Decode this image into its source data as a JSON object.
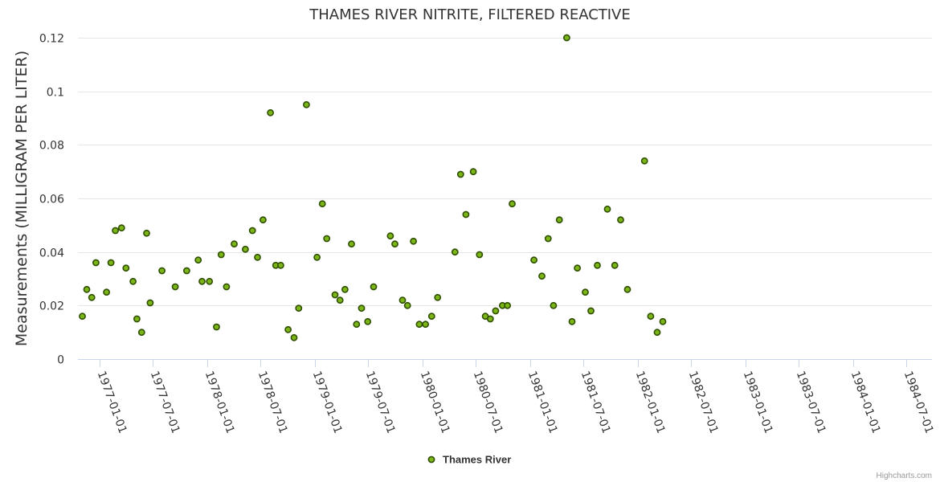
{
  "chart_data": {
    "type": "scatter",
    "title": "THAMES RIVER NITRITE, FILTERED REACTIVE",
    "xlabel": "",
    "ylabel": "Measurements (MILLIGRAM PER LITER)",
    "ylim": [
      0,
      0.12
    ],
    "y_ticks": [
      "0",
      "0.02",
      "0.04",
      "0.06",
      "0.08",
      "0.1",
      "0.12"
    ],
    "xlim": [
      "1976-10-20",
      "1984-09-25"
    ],
    "x_ticks": [
      "1977-01-01",
      "1977-07-01",
      "1978-01-01",
      "1978-07-01",
      "1979-01-01",
      "1979-07-01",
      "1980-01-01",
      "1980-07-01",
      "1981-01-01",
      "1981-07-01",
      "1982-01-01",
      "1982-07-01",
      "1983-01-01",
      "1983-07-01",
      "1984-01-01",
      "1984-07-01"
    ],
    "grid": true,
    "legend": "bottom-center",
    "series": [
      {
        "name": "Thames River",
        "color": "#7cb518",
        "points": [
          {
            "x": "1976-11-04",
            "y": 0.016
          },
          {
            "x": "1976-11-19",
            "y": 0.026
          },
          {
            "x": "1976-12-06",
            "y": 0.023
          },
          {
            "x": "1976-12-20",
            "y": 0.036
          },
          {
            "x": "1977-01-25",
            "y": 0.025
          },
          {
            "x": "1977-02-09",
            "y": 0.036
          },
          {
            "x": "1977-02-24",
            "y": 0.048
          },
          {
            "x": "1977-03-17",
            "y": 0.049
          },
          {
            "x": "1977-04-01",
            "y": 0.034
          },
          {
            "x": "1977-04-25",
            "y": 0.029
          },
          {
            "x": "1977-05-08",
            "y": 0.015
          },
          {
            "x": "1977-05-24",
            "y": 0.01
          },
          {
            "x": "1977-06-10",
            "y": 0.047
          },
          {
            "x": "1977-06-22",
            "y": 0.021
          },
          {
            "x": "1977-08-01",
            "y": 0.033
          },
          {
            "x": "1977-09-15",
            "y": 0.027
          },
          {
            "x": "1977-10-24",
            "y": 0.033
          },
          {
            "x": "1977-12-02",
            "y": 0.037
          },
          {
            "x": "1977-12-15",
            "y": 0.029
          },
          {
            "x": "1978-01-09",
            "y": 0.029
          },
          {
            "x": "1978-02-02",
            "y": 0.012
          },
          {
            "x": "1978-02-18",
            "y": 0.039
          },
          {
            "x": "1978-03-08",
            "y": 0.027
          },
          {
            "x": "1978-04-03",
            "y": 0.043
          },
          {
            "x": "1978-05-11",
            "y": 0.041
          },
          {
            "x": "1978-06-04",
            "y": 0.048
          },
          {
            "x": "1978-06-21",
            "y": 0.038
          },
          {
            "x": "1978-07-10",
            "y": 0.052
          },
          {
            "x": "1978-08-04",
            "y": 0.092
          },
          {
            "x": "1978-08-22",
            "y": 0.035
          },
          {
            "x": "1978-09-08",
            "y": 0.035
          },
          {
            "x": "1978-10-03",
            "y": 0.011
          },
          {
            "x": "1978-10-23",
            "y": 0.008
          },
          {
            "x": "1978-11-08",
            "y": 0.019
          },
          {
            "x": "1978-12-04",
            "y": 0.095
          },
          {
            "x": "1979-01-09",
            "y": 0.038
          },
          {
            "x": "1979-01-27",
            "y": 0.058
          },
          {
            "x": "1979-02-11",
            "y": 0.045
          },
          {
            "x": "1979-03-11",
            "y": 0.024
          },
          {
            "x": "1979-03-28",
            "y": 0.022
          },
          {
            "x": "1979-04-14",
            "y": 0.026
          },
          {
            "x": "1979-05-06",
            "y": 0.043
          },
          {
            "x": "1979-05-23",
            "y": 0.013
          },
          {
            "x": "1979-06-09",
            "y": 0.019
          },
          {
            "x": "1979-06-30",
            "y": 0.014
          },
          {
            "x": "1979-07-20",
            "y": 0.027
          },
          {
            "x": "1979-09-15",
            "y": 0.046
          },
          {
            "x": "1979-09-30",
            "y": 0.043
          },
          {
            "x": "1979-10-26",
            "y": 0.022
          },
          {
            "x": "1979-11-12",
            "y": 0.02
          },
          {
            "x": "1979-12-02",
            "y": 0.044
          },
          {
            "x": "1979-12-22",
            "y": 0.013
          },
          {
            "x": "1980-01-12",
            "y": 0.013
          },
          {
            "x": "1980-02-02",
            "y": 0.016
          },
          {
            "x": "1980-02-22",
            "y": 0.023
          },
          {
            "x": "1980-04-21",
            "y": 0.04
          },
          {
            "x": "1980-05-10",
            "y": 0.069
          },
          {
            "x": "1980-05-28",
            "y": 0.054
          },
          {
            "x": "1980-06-22",
            "y": 0.07
          },
          {
            "x": "1980-07-13",
            "y": 0.039
          },
          {
            "x": "1980-08-02",
            "y": 0.016
          },
          {
            "x": "1980-08-19",
            "y": 0.015
          },
          {
            "x": "1980-09-06",
            "y": 0.018
          },
          {
            "x": "1980-09-29",
            "y": 0.02
          },
          {
            "x": "1980-10-16",
            "y": 0.02
          },
          {
            "x": "1980-11-01",
            "y": 0.058
          },
          {
            "x": "1981-01-14",
            "y": 0.037
          },
          {
            "x": "1981-02-10",
            "y": 0.031
          },
          {
            "x": "1981-03-03",
            "y": 0.045
          },
          {
            "x": "1981-03-21",
            "y": 0.02
          },
          {
            "x": "1981-04-10",
            "y": 0.052
          },
          {
            "x": "1981-05-05",
            "y": 0.12
          },
          {
            "x": "1981-05-23",
            "y": 0.014
          },
          {
            "x": "1981-06-10",
            "y": 0.034
          },
          {
            "x": "1981-07-07",
            "y": 0.025
          },
          {
            "x": "1981-07-26",
            "y": 0.018
          },
          {
            "x": "1981-08-17",
            "y": 0.035
          },
          {
            "x": "1981-09-20",
            "y": 0.056
          },
          {
            "x": "1981-10-15",
            "y": 0.035
          },
          {
            "x": "1981-11-04",
            "y": 0.052
          },
          {
            "x": "1981-11-27",
            "y": 0.026
          },
          {
            "x": "1982-01-24",
            "y": 0.074
          },
          {
            "x": "1982-02-14",
            "y": 0.016
          },
          {
            "x": "1982-03-08",
            "y": 0.01
          },
          {
            "x": "1982-03-27",
            "y": 0.014
          }
        ]
      }
    ]
  },
  "credits": "Highcharts.com"
}
